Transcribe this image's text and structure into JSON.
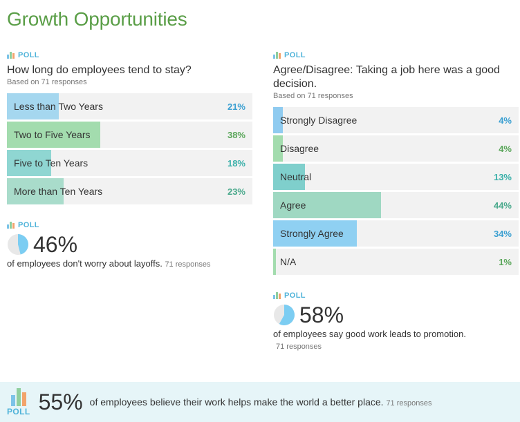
{
  "title": "Growth Opportunities",
  "poll_label": "POLL",
  "colors": {
    "title": "#5a9e47",
    "blue": "#7cc3e8",
    "green": "#8fcf9e",
    "teal": "#7ccfcf",
    "sea": "#9fd6bf",
    "pct_blue": "#3a9fd1",
    "pct_green": "#5a9e47",
    "pct_teal": "#3ab0a9"
  },
  "poll1": {
    "question": "How long do employees tend to stay?",
    "responses": "Based on 71 responses",
    "options": [
      {
        "label": "Less than Two Years",
        "pct": "21%",
        "value": 21,
        "fill": "#a5d7ef",
        "pct_color": "#3a9fd1"
      },
      {
        "label": "Two to Five Years",
        "pct": "38%",
        "value": 38,
        "fill": "#a3dcae",
        "pct_color": "#5aa65a"
      },
      {
        "label": "Five to Ten Years",
        "pct": "18%",
        "value": 18,
        "fill": "#8fd6d2",
        "pct_color": "#3ab0a9"
      },
      {
        "label": "More than Ten Years",
        "pct": "23%",
        "value": 23,
        "fill": "#a9dccb",
        "pct_color": "#4aa98c"
      }
    ]
  },
  "stat1": {
    "value": "46%",
    "percent": 46,
    "text": "of employees don't worry about layoffs.",
    "responses": "71 responses"
  },
  "poll2": {
    "question": "Agree/Disagree: Taking a job here was a good decision.",
    "responses": "Based on 71 responses",
    "options": [
      {
        "label": "Strongly Disagree",
        "pct": "4%",
        "value": 4,
        "fill": "#8fcbf0",
        "pct_color": "#3a9fd1"
      },
      {
        "label": "Disagree",
        "pct": "4%",
        "value": 4,
        "fill": "#a3dcae",
        "pct_color": "#5aa65a"
      },
      {
        "label": "Neutral",
        "pct": "13%",
        "value": 13,
        "fill": "#7fcfcc",
        "pct_color": "#3ab0a9"
      },
      {
        "label": "Agree",
        "pct": "44%",
        "value": 44,
        "fill": "#9fd8c2",
        "pct_color": "#4aa98c"
      },
      {
        "label": "Strongly Agree",
        "pct": "34%",
        "value": 34,
        "fill": "#8fd0f2",
        "pct_color": "#3a9fd1"
      },
      {
        "label": "N/A",
        "pct": "1%",
        "value": 1,
        "fill": "#a3dcae",
        "pct_color": "#5aa65a"
      }
    ]
  },
  "stat2": {
    "value": "58%",
    "percent": 58,
    "text": "of employees say good work leads to promotion.",
    "responses": "71 responses"
  },
  "footer": {
    "value": "55%",
    "text": "of employees believe their work helps make the world a better place.",
    "responses": "71 responses"
  }
}
